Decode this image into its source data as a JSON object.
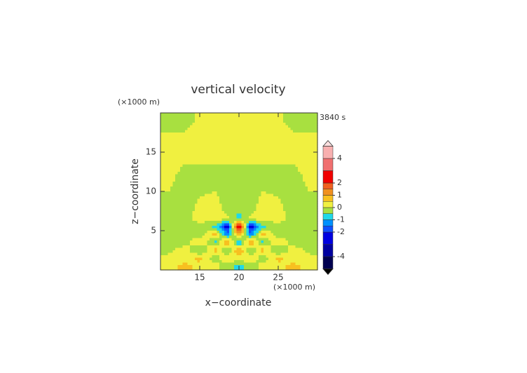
{
  "chart_data": {
    "type": "contour",
    "title": "vertical velocity",
    "y_unit": "(×1000 m)",
    "x_unit": "(×1000 m)",
    "time_label": "3840 s",
    "xlabel": "x−coordinate",
    "ylabel": "z−coordinate",
    "xlim": [
      10,
      30
    ],
    "ylim": [
      0,
      20
    ],
    "xticks": [
      15,
      20,
      25
    ],
    "yticks": [
      5,
      10,
      15
    ],
    "x": [
      11,
      13,
      15,
      17,
      18.5,
      20,
      21.5,
      23,
      25,
      27,
      29
    ],
    "z": [
      0.5,
      1.5,
      2.5,
      3.5,
      4.5,
      5.5,
      6.5,
      8,
      12,
      15.5,
      19
    ],
    "values": [
      [
        0.3,
        0.6,
        0.4,
        0.2,
        -0.3,
        -0.6,
        -0.3,
        0.2,
        0.4,
        0.6,
        0.3
      ],
      [
        0.2,
        0.3,
        0.6,
        -0.3,
        0.4,
        0.2,
        0.4,
        -0.3,
        0.6,
        0.3,
        0.2
      ],
      [
        -0.2,
        0.3,
        -0.6,
        0.8,
        -0.6,
        1.2,
        -0.6,
        0.8,
        -0.6,
        0.3,
        -0.2
      ],
      [
        -0.2,
        -0.3,
        0.6,
        -0.8,
        1.2,
        -1.2,
        1.2,
        -0.8,
        0.6,
        -0.3,
        -0.2
      ],
      [
        -0.2,
        -0.2,
        -0.3,
        0.8,
        -1.3,
        0.8,
        -1.3,
        0.8,
        -0.3,
        -0.2,
        -0.2
      ],
      [
        -0.2,
        -0.2,
        -0.2,
        -0.6,
        -2.5,
        3.0,
        -2.5,
        -0.6,
        -0.2,
        -0.2,
        -0.2
      ],
      [
        -0.2,
        -0.2,
        0.2,
        0.3,
        0.1,
        -0.8,
        0.1,
        0.3,
        0.2,
        -0.2,
        -0.2
      ],
      [
        -0.2,
        -0.2,
        0.1,
        0.2,
        -0.2,
        -0.3,
        -0.2,
        0.2,
        0.1,
        -0.2,
        -0.2
      ],
      [
        0.2,
        -0.2,
        -0.2,
        -0.2,
        -0.2,
        -0.2,
        -0.2,
        -0.2,
        -0.2,
        -0.2,
        0.2
      ],
      [
        0.3,
        0.3,
        0.3,
        0.3,
        0.3,
        0.3,
        0.3,
        0.3,
        0.3,
        0.3,
        0.3
      ],
      [
        -0.2,
        -0.2,
        0.1,
        0.3,
        0.3,
        0.3,
        0.3,
        0.3,
        0.1,
        -0.2,
        -0.2
      ]
    ],
    "levels": [
      -5,
      -4,
      -3,
      -2,
      -1.5,
      -1,
      -0.5,
      0,
      0.5,
      1,
      1.5,
      2,
      3,
      4,
      5
    ],
    "colors": [
      "#000050",
      "#0000a0",
      "#0000e0",
      "#1050ff",
      "#0090ff",
      "#20d8e8",
      "#a8e040",
      "#f0f040",
      "#f8c020",
      "#f09020",
      "#f06020",
      "#f00000",
      "#f07070",
      "#f8b0b0"
    ],
    "colorbar_ticks": [
      4,
      2,
      1,
      0,
      -1,
      -2,
      -4
    ]
  }
}
